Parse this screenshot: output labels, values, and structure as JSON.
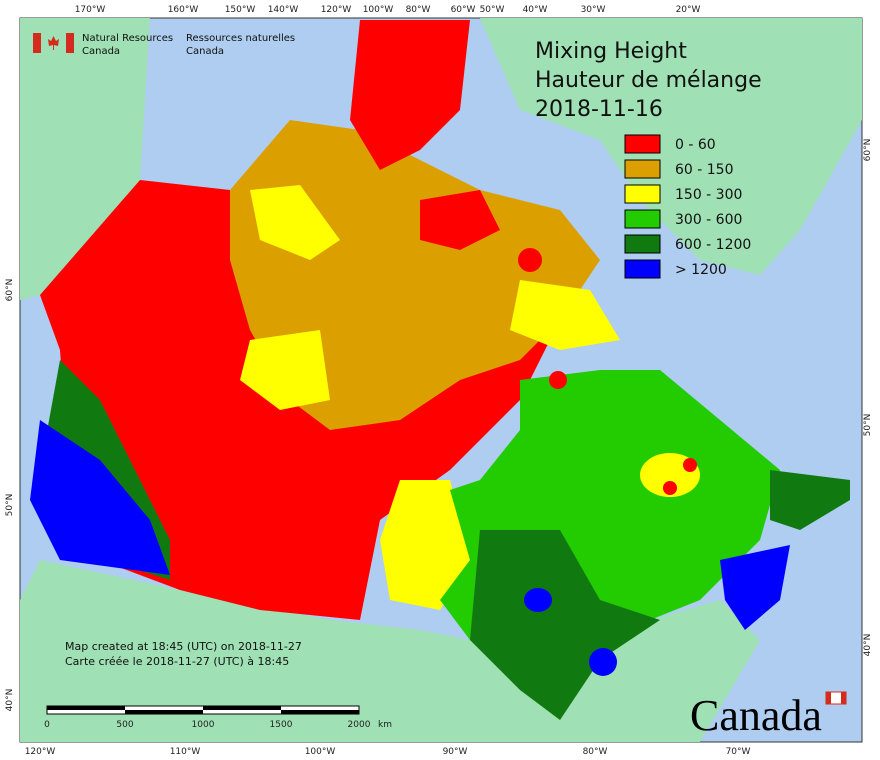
{
  "header": {
    "agency_en_1": "Natural Resources",
    "agency_en_2": "Canada",
    "agency_fr_1": "Ressources naturelles",
    "agency_fr_2": "Canada"
  },
  "title": {
    "line_en": "Mixing Height",
    "line_fr": "Hauteur de mélange",
    "date": "2018-11-16"
  },
  "legend": [
    {
      "label": "0 - 60",
      "color": "#ff0000"
    },
    {
      "label": "60 - 150",
      "color": "#dba000"
    },
    {
      "label": "150 - 300",
      "color": "#ffff00"
    },
    {
      "label": "300 - 600",
      "color": "#22cc00"
    },
    {
      "label": "600 - 1200",
      "color": "#107a10"
    },
    {
      "label": "> 1200",
      "color": "#0000ff"
    }
  ],
  "graticule": {
    "top": [
      "170°W",
      "160°W",
      "150°W",
      "140°W",
      "120°W",
      "100°W",
      "80°W",
      "60°W",
      "50°W",
      "40°W",
      "30°W",
      "20°W"
    ],
    "bottom": [
      "120°W",
      "110°W",
      "100°W",
      "90°W",
      "80°W",
      "70°W"
    ],
    "left": [
      "60°N",
      "50°N",
      "40°N"
    ],
    "right": [
      "60°N",
      "50°N",
      "40°N"
    ]
  },
  "credits": {
    "line_en": "Map created at 18:45 (UTC) on 2018-11-27",
    "line_fr": "Carte créée le 2018-11-27 (UTC) à 18:45"
  },
  "scale_bar": {
    "labels": [
      "0",
      "500",
      "1000",
      "1500",
      "2000"
    ],
    "unit": "km"
  },
  "wordmark": "Canada"
}
